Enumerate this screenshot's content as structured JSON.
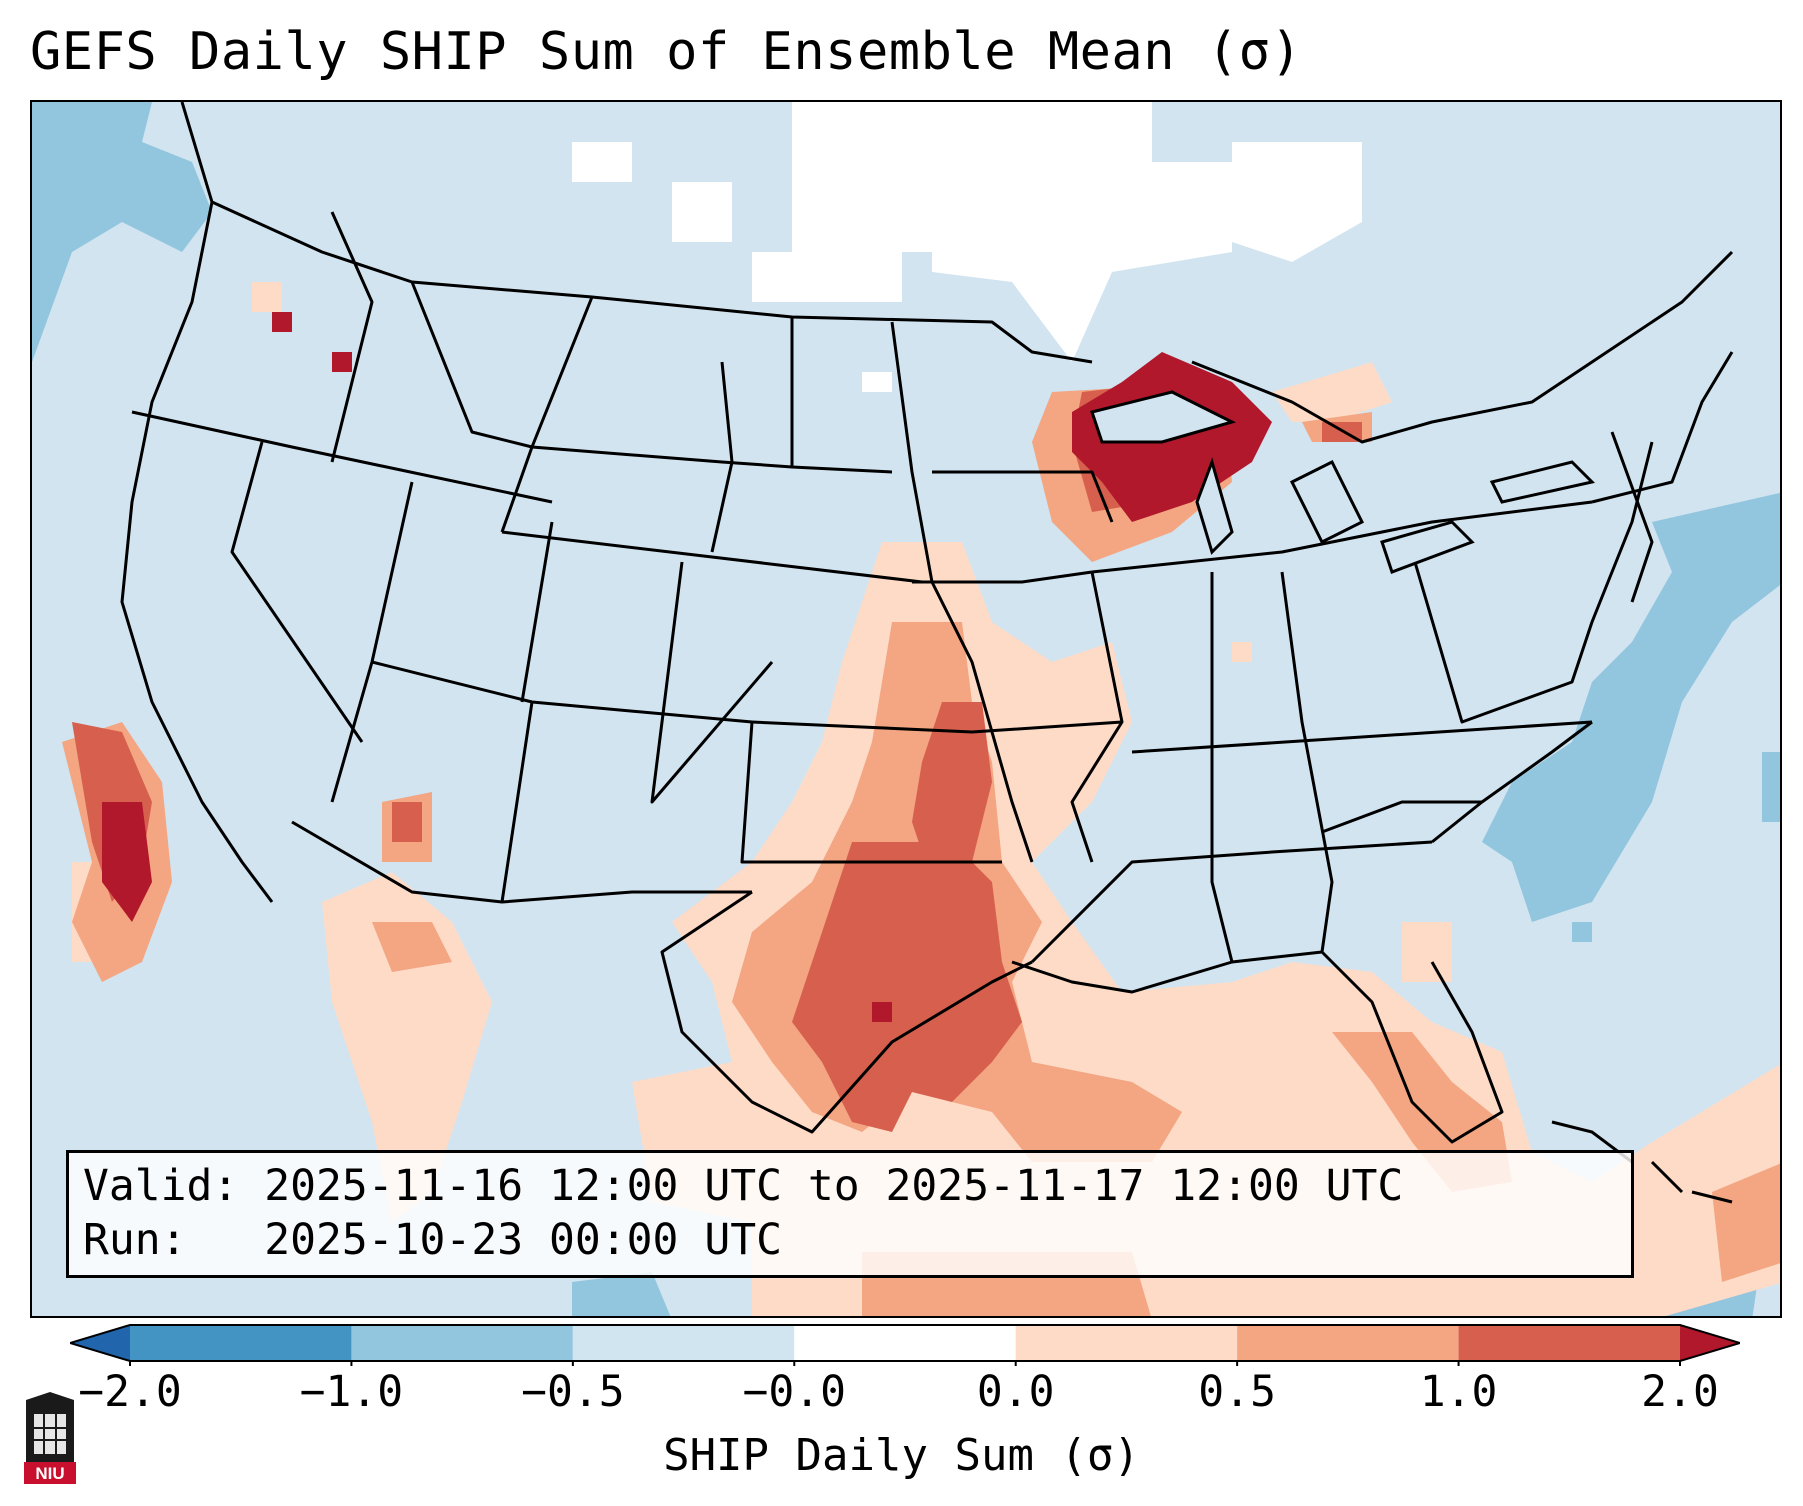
{
  "title": "GEFS Daily SHIP Sum of Ensemble Mean (σ)",
  "map": {
    "description_colors": {
      "background": "#d1e4f0",
      "white_cells": "#ffffff",
      "light_blue": "#92c5de",
      "mid_blue": "#4393c3",
      "light_red": "#fddbc7",
      "mid_red": "#f4a582",
      "red": "#d6604d",
      "dark_red": "#b2182b"
    }
  },
  "info_box": {
    "valid_line": "Valid: 2025-11-16 12:00 UTC to 2025-11-17 12:00 UTC",
    "run_line": "Run:   2025-10-23 00:00 UTC"
  },
  "colorbar": {
    "label": "SHIP Daily Sum (σ)",
    "ticks": [
      "−2.0",
      "−1.0",
      "−0.5",
      "−0.0",
      "0.0",
      "0.5",
      "1.0",
      "2.0"
    ],
    "colors": [
      "#2166ac",
      "#4393c3",
      "#92c5de",
      "#d1e5f0",
      "#ffffff",
      "#fddbc7",
      "#f4a582",
      "#d6604d",
      "#b2182b"
    ]
  },
  "logo": {
    "text": "NIU"
  }
}
